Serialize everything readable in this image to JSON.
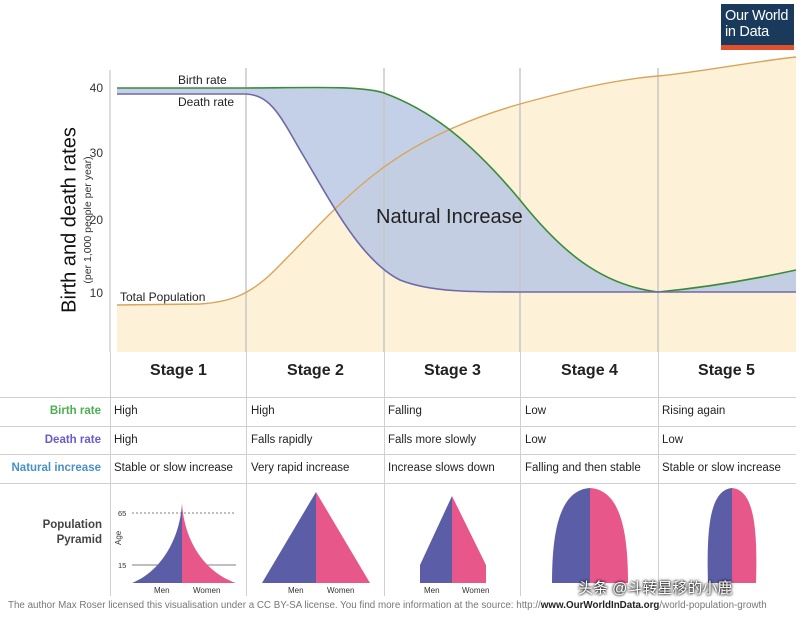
{
  "logo": {
    "line1": "Our World",
    "line2": "in Data"
  },
  "chart": {
    "y_axis_title": "Birth and death rates",
    "y_axis_subtitle": "(per 1,000 people per year)",
    "y_ticks": [
      "40",
      "30",
      "20",
      "10"
    ],
    "label_birth": "Birth rate",
    "label_death": "Death rate",
    "label_population": "Total Population",
    "label_natural": "Natural Increase",
    "colors": {
      "birth": "#3a8b3a",
      "death": "#6e6aa8",
      "population": "#d9a55a",
      "natural_fill": "#bccbe6",
      "population_fill": "#fdf1d8"
    }
  },
  "stages": [
    "Stage 1",
    "Stage 2",
    "Stage 3",
    "Stage 4",
    "Stage 5"
  ],
  "rows": [
    {
      "label": "Birth rate",
      "color": "#4caf50",
      "cells": [
        "High",
        "High",
        "Falling",
        "Low",
        "Rising again"
      ]
    },
    {
      "label": "Death rate",
      "color": "#6a5acd",
      "cells": [
        "High",
        "Falls rapidly",
        "Falls more slowly",
        "Low",
        "Low"
      ]
    },
    {
      "label": "Natural increase",
      "color": "#4a90c8",
      "cells": [
        "Stable or slow increase",
        "Very rapid increase",
        "Increase slows down",
        "Falling and then stable",
        "Stable or slow increase"
      ]
    }
  ],
  "pyramid": {
    "label_line1": "Population",
    "label_line2": "Pyramid",
    "age_label": "Age",
    "age_65": "65",
    "age_15": "15",
    "men": "Men",
    "women": "Women",
    "colors": {
      "men": "#5b5ea6",
      "women": "#e8578a"
    }
  },
  "credit": {
    "text": "The author Max Roser licensed this visualisation under a CC BY-SA license. You find more information at the source: http://",
    "bold": "www.OurWorldInData.org",
    "rest": "/world-population-growth"
  },
  "watermark": "头条 @斗转星移的小鹿"
}
